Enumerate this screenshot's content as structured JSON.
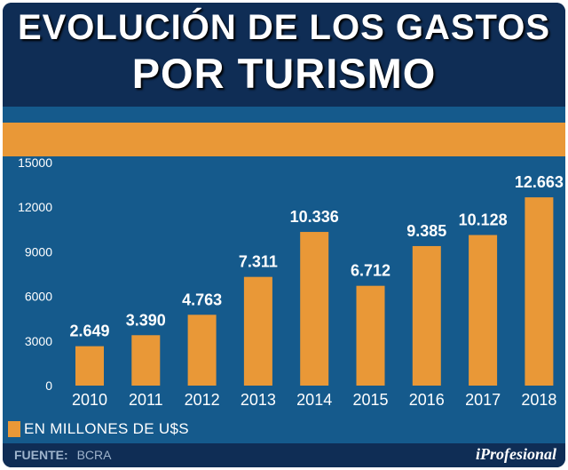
{
  "header": {
    "title_line1": "EVOLUCIÓN DE LOS GASTOS",
    "title_line2": "POR TURISMO"
  },
  "colors": {
    "background": "#0f2d55",
    "panel": "#155a8c",
    "bar": "#e99837",
    "text": "#ffffff"
  },
  "chart_data": {
    "type": "bar",
    "title": "EVOLUCIÓN DE LOS GASTOS POR TURISMO",
    "categories": [
      "2010",
      "2011",
      "2012",
      "2013",
      "2014",
      "2015",
      "2016",
      "2017",
      "2018"
    ],
    "values": [
      2649,
      3390,
      4763,
      7311,
      10336,
      6712,
      9385,
      10128,
      12663
    ],
    "value_labels": [
      "2.649",
      "3.390",
      "4.763",
      "7.311",
      "10.336",
      "6.712",
      "9.385",
      "10.128",
      "12.663"
    ],
    "y_ticks": [
      "0",
      "3000",
      "6000",
      "9000",
      "12000",
      "15000"
    ],
    "ylim": [
      0,
      15000
    ],
    "xlabel": "",
    "ylabel": "",
    "grid": false,
    "legend": "EN MILLONES  DE U$S"
  },
  "legend": {
    "label": "EN MILLONES  DE U$S"
  },
  "footer": {
    "source_label": "FUENTE:",
    "source_value": "BCRA",
    "brand": "iProfesional"
  }
}
